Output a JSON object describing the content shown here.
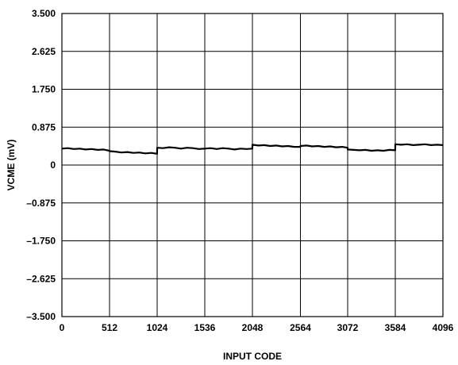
{
  "chart_data": {
    "type": "line",
    "title": "",
    "xlabel": "INPUT CODE",
    "ylabel": "VCME (mV)",
    "xlim": [
      0,
      4096
    ],
    "ylim": [
      -3.5,
      3.5
    ],
    "xticks": [
      0,
      512,
      1024,
      1536,
      2048,
      2564,
      3072,
      3584,
      4096
    ],
    "xtick_labels": [
      "0",
      "512",
      "1024",
      "1536",
      "2048",
      "2564",
      "3072",
      "3584",
      "4096"
    ],
    "yticks": [
      3.5,
      2.625,
      1.75,
      0.875,
      0,
      -0.875,
      -1.75,
      -2.625,
      -3.5
    ],
    "ytick_labels": [
      "3.500",
      "2.625",
      "1.750",
      "0.875",
      "0",
      "–0.875",
      "–1.750",
      "–2.625",
      "–3.500"
    ],
    "grid": true,
    "series": [
      {
        "x": [
          0,
          64,
          128,
          192,
          256,
          320,
          384,
          448,
          511,
          512,
          576,
          640,
          704,
          768,
          832,
          896,
          960,
          1023,
          1024,
          1088,
          1152,
          1216,
          1280,
          1344,
          1408,
          1472,
          1535,
          1536,
          1600,
          1664,
          1728,
          1792,
          1856,
          1920,
          1984,
          2047,
          2048,
          2112,
          2176,
          2240,
          2304,
          2368,
          2432,
          2496,
          2563,
          2564,
          2628,
          2692,
          2756,
          2820,
          2884,
          2948,
          3012,
          3071,
          3072,
          3136,
          3200,
          3264,
          3328,
          3392,
          3456,
          3520,
          3583,
          3584,
          3648,
          3712,
          3776,
          3840,
          3904,
          3968,
          4032,
          4095
        ],
        "y": [
          0.38,
          0.39,
          0.37,
          0.38,
          0.36,
          0.37,
          0.35,
          0.36,
          0.33,
          0.32,
          0.31,
          0.29,
          0.3,
          0.28,
          0.29,
          0.27,
          0.28,
          0.26,
          0.4,
          0.39,
          0.41,
          0.4,
          0.38,
          0.4,
          0.39,
          0.37,
          0.38,
          0.38,
          0.39,
          0.37,
          0.39,
          0.38,
          0.36,
          0.38,
          0.37,
          0.38,
          0.47,
          0.45,
          0.46,
          0.44,
          0.45,
          0.43,
          0.44,
          0.42,
          0.42,
          0.44,
          0.45,
          0.43,
          0.44,
          0.42,
          0.43,
          0.41,
          0.42,
          0.4,
          0.36,
          0.35,
          0.34,
          0.35,
          0.33,
          0.34,
          0.33,
          0.35,
          0.34,
          0.48,
          0.47,
          0.48,
          0.46,
          0.47,
          0.48,
          0.46,
          0.47,
          0.46
        ]
      }
    ]
  }
}
